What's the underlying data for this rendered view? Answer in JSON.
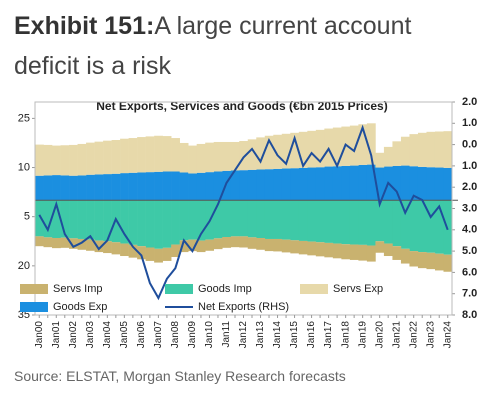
{
  "header": {
    "exhibit": "Exhibit 151:",
    "title": "A large current account deficit is a risk"
  },
  "chart_data": {
    "type": "bar-line",
    "title": "Net Exports, Services and Goods (€bn 2015 Prices)",
    "categories": [
      "Jan00",
      null,
      "Jan01",
      null,
      "Jan02",
      null,
      "Jan03",
      null,
      "Jan04",
      null,
      "Jan05",
      null,
      "Jan06",
      null,
      "Jan07",
      null,
      "Jan08",
      null,
      "Jan09",
      null,
      "Jan10",
      null,
      "Jan11",
      null,
      "Jan12",
      null,
      "Jan13",
      null,
      "Jan14",
      null,
      "Jan15",
      null,
      "Jan16",
      null,
      "Jan17",
      null,
      "Jan18",
      null,
      "Jan19",
      null,
      "Jan20",
      null,
      "Jan21",
      null,
      "Jan22",
      null,
      "Jan23",
      null,
      "Jan24"
    ],
    "ylim": [
      -35,
      30
    ],
    "yticks": [
      25,
      10,
      {
        "value": -5,
        "label": "5"
      },
      {
        "value": -20,
        "label": "20"
      },
      {
        "value": -35,
        "label": "35"
      }
    ],
    "y2lim": [
      -8,
      2
    ],
    "y2ticks": [
      {
        "value": 2,
        "label": "2.0"
      },
      {
        "value": 1,
        "label": "1.0"
      },
      {
        "value": 0,
        "label": "0.0"
      },
      {
        "value": -1,
        "label": "1.0"
      },
      {
        "value": -2,
        "label": "2.0"
      },
      {
        "value": -3,
        "label": "3.0"
      },
      {
        "value": -4,
        "label": "4.0"
      },
      {
        "value": -5,
        "label": "5.0"
      },
      {
        "value": -6,
        "label": "6.0"
      },
      {
        "value": -7,
        "label": "7.0"
      },
      {
        "value": -8,
        "label": "8.0"
      }
    ],
    "series": [
      {
        "name": "Servs Imp",
        "color": "#c9b26f",
        "stack": "neg",
        "values": [
          -3.0,
          -3.0,
          -3.1,
          -3.1,
          -3.2,
          -3.3,
          -3.4,
          -3.5,
          -3.6,
          -3.7,
          -3.8,
          -3.9,
          -4.0,
          -4.1,
          -4.2,
          -4.0,
          -3.8,
          -3.6,
          -3.5,
          -3.5,
          -3.4,
          -3.3,
          -3.3,
          -3.3,
          -3.4,
          -3.5,
          -3.6,
          -3.7,
          -3.8,
          -3.9,
          -4.0,
          -4.1,
          -4.2,
          -4.3,
          -4.4,
          -4.5,
          -4.6,
          -4.7,
          -4.8,
          -4.9,
          -3.5,
          -3.8,
          -4.2,
          -4.5,
          -4.7,
          -4.9,
          -5.0,
          -5.1,
          -5.2
        ]
      },
      {
        "name": "Goods Imp",
        "color": "#3ec9a7",
        "stack": "neg",
        "values": [
          -11.0,
          -11.3,
          -11.5,
          -11.4,
          -11.6,
          -11.8,
          -12.0,
          -12.3,
          -12.5,
          -12.8,
          -13.2,
          -13.6,
          -14.0,
          -14.4,
          -14.8,
          -14.5,
          -13.5,
          -12.2,
          -12.0,
          -12.3,
          -12.0,
          -11.6,
          -11.2,
          -11.0,
          -11.0,
          -11.3,
          -11.5,
          -11.8,
          -11.8,
          -12.0,
          -12.2,
          -12.4,
          -12.6,
          -12.8,
          -13.0,
          -13.2,
          -13.4,
          -13.5,
          -13.6,
          -13.8,
          -12.5,
          -13.2,
          -14.0,
          -14.8,
          -15.5,
          -15.8,
          -16.0,
          -16.3,
          -16.6
        ]
      },
      {
        "name": "Servs Exp",
        "color": "#e7d9aa",
        "stack": "pos",
        "values": [
          9.5,
          9.3,
          9.0,
          9.2,
          9.4,
          9.6,
          9.8,
          10.0,
          10.2,
          10.3,
          10.5,
          10.6,
          10.8,
          10.9,
          11.0,
          10.8,
          10.2,
          9.0,
          8.5,
          8.8,
          9.0,
          9.0,
          8.8,
          8.7,
          8.9,
          9.3,
          9.8,
          10.2,
          10.4,
          10.6,
          10.8,
          11.0,
          11.2,
          11.4,
          11.6,
          11.8,
          12.0,
          12.2,
          12.4,
          12.6,
          4.5,
          6.0,
          7.5,
          8.8,
          9.8,
          10.4,
          10.8,
          11.0,
          11.2
        ]
      },
      {
        "name": "Goods Exp",
        "color": "#1b8fe0",
        "stack": "pos",
        "values": [
          7.5,
          7.6,
          7.7,
          7.6,
          7.5,
          7.6,
          7.8,
          7.9,
          8.0,
          8.1,
          8.3,
          8.4,
          8.5,
          8.6,
          8.7,
          8.8,
          8.8,
          8.5,
          8.2,
          8.4,
          8.6,
          8.8,
          9.0,
          9.1,
          9.2,
          9.3,
          9.4,
          9.5,
          9.6,
          9.7,
          9.8,
          9.9,
          10.0,
          10.1,
          10.3,
          10.4,
          10.5,
          10.6,
          10.8,
          10.9,
          10.0,
          10.3,
          10.5,
          10.6,
          10.4,
          10.2,
          10.1,
          10.0,
          9.9
        ]
      },
      {
        "name": "Net Exports (RHS)",
        "color": "#1f4e9c",
        "axis": "y2",
        "values": [
          -3.3,
          -4.0,
          -2.8,
          -4.2,
          -4.8,
          -4.6,
          -4.3,
          -4.9,
          -4.5,
          -3.5,
          -4.2,
          -4.8,
          -5.2,
          -6.5,
          -7.2,
          -6.3,
          -5.8,
          -4.5,
          -5.0,
          -4.2,
          -3.6,
          -2.8,
          -1.8,
          -1.2,
          -0.6,
          -0.2,
          -0.8,
          0.2,
          -0.5,
          -0.9,
          0.3,
          -1.0,
          -0.4,
          -0.8,
          -0.2,
          -1.0,
          0.0,
          -0.3,
          0.8,
          -0.5,
          -2.8,
          -1.8,
          -2.2,
          -3.2,
          -2.4,
          -2.6,
          -3.4,
          -2.9,
          -4.0
        ]
      }
    ]
  },
  "source": "Source: ELSTAT, Morgan Stanley Research forecasts"
}
